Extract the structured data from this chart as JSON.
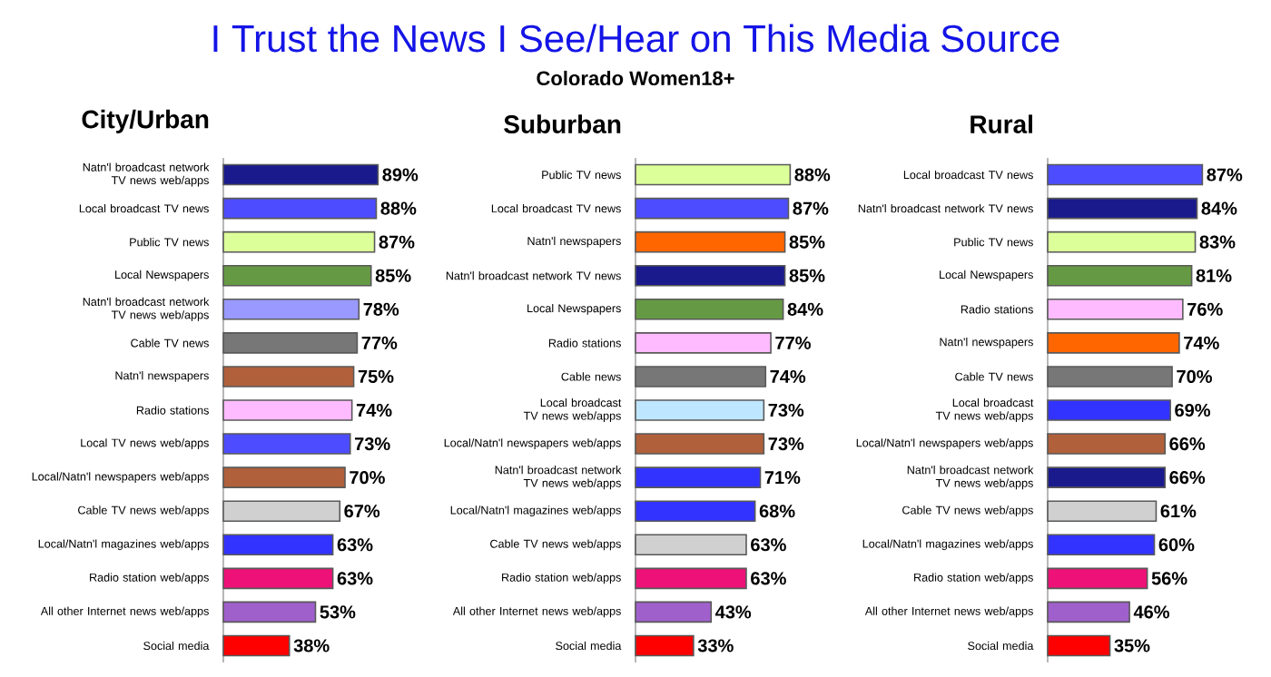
{
  "chart_data": [
    {
      "type": "other",
      "title": "I Trust the News I See/Hear on This Media Source",
      "subtitle": "Colorado Women18+"
    },
    {
      "type": "bar",
      "orientation": "horizontal",
      "title": "City/Urban",
      "categories": [
        "Natn'l broadcast network TV news web/apps",
        "Local broadcast TV news",
        "Public TV news",
        "Local Newspapers",
        "Natn'l broadcast network TV news web/apps",
        "Cable TV news",
        "Natn'l newspapers",
        "Radio stations",
        "Local TV news web/apps",
        "Local/Natn'l newspapers web/apps",
        "Cable TV news web/apps",
        "Local/Natn'l magazines web/apps",
        "Radio station web/apps",
        "All other Internet news web/apps",
        "Social media"
      ],
      "values": [
        89,
        88,
        87,
        85,
        78,
        77,
        75,
        74,
        73,
        70,
        67,
        63,
        63,
        53,
        38
      ],
      "colors": [
        "#1a1a8c",
        "#4d4dff",
        "#ddff99",
        "#669944",
        "#9999ff",
        "#777777",
        "#b0603a",
        "#ffbbff",
        "#4d4dff",
        "#b0603a",
        "#d0d0d0",
        "#3333ff",
        "#ee1177",
        "#a060cc",
        "#ff0000"
      ],
      "value_labels": [
        "89%",
        "88%",
        "87%",
        "85%",
        "78%",
        "77%",
        "75%",
        "74%",
        "73%",
        "70%",
        "67%",
        "63%",
        "63%",
        "53%",
        "38%"
      ]
    },
    {
      "type": "bar",
      "orientation": "horizontal",
      "title": "Suburban",
      "categories": [
        "Public TV news",
        "Local broadcast TV news",
        "Natn'l newspapers",
        "Natn'l broadcast network TV news",
        "Local Newspapers",
        "Radio stations",
        "Cable news",
        "Local broadcast TV news web/apps",
        "Local/Natn'l newspapers web/apps",
        "Natn'l broadcast network TV news web/apps",
        "Local/Natn'l magazines web/apps",
        "Cable TV news web/apps",
        "Radio station web/apps",
        "All other Internet news web/apps",
        "Social media"
      ],
      "values": [
        88,
        87,
        85,
        85,
        84,
        77,
        74,
        73,
        73,
        71,
        68,
        63,
        63,
        43,
        33
      ],
      "colors": [
        "#ddff99",
        "#4d4dff",
        "#ff6600",
        "#1a1a8c",
        "#669944",
        "#ffbbff",
        "#777777",
        "#bfe6ff",
        "#b0603a",
        "#3333ff",
        "#3333ff",
        "#d0d0d0",
        "#ee1177",
        "#a060cc",
        "#ff0000"
      ],
      "value_labels": [
        "88%",
        "87%",
        "85%",
        "85%",
        "84%",
        "77%",
        "74%",
        "73%",
        "73%",
        "71%",
        "68%",
        "63%",
        "63%",
        "43%",
        "33%"
      ]
    },
    {
      "type": "bar",
      "orientation": "horizontal",
      "title": "Rural",
      "categories": [
        "Local broadcast TV news",
        "Natn'l broadcast network TV news",
        "Public TV news",
        "Local Newspapers",
        "Radio stations",
        "Natn'l newspapers",
        "Cable TV news",
        "Local broadcast TV news web/apps",
        "Local/Natn'l newspapers web/apps",
        "Natn'l broadcast network TV news web/apps",
        "Cable TV news web/apps",
        "Local/Natn'l magazines web/apps",
        "Radio station web/apps",
        "All other Internet news web/apps",
        "Social media"
      ],
      "values": [
        87,
        84,
        83,
        81,
        76,
        74,
        70,
        69,
        66,
        66,
        61,
        60,
        56,
        46,
        35
      ],
      "colors": [
        "#4d4dff",
        "#1a1a8c",
        "#ddff99",
        "#669944",
        "#ffbbff",
        "#ff6600",
        "#777777",
        "#3333ff",
        "#b0603a",
        "#1a1a8c",
        "#d0d0d0",
        "#3333ff",
        "#ee1177",
        "#a060cc",
        "#ff0000"
      ],
      "value_labels": [
        "87%",
        "84%",
        "83%",
        "81%",
        "76%",
        "74%",
        "70%",
        "69%",
        "66%",
        "66%",
        "61%",
        "60%",
        "56%",
        "46%",
        "35%"
      ]
    }
  ]
}
